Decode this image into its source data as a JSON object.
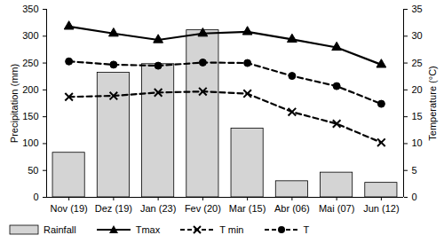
{
  "chart_data": {
    "type": "bar",
    "categories": [
      "Nov (19)",
      "Dez (19)",
      "Jan (23)",
      "Fev (20)",
      "Mar (15)",
      "Abr (06)",
      "Mai (07)",
      "Jun (12)"
    ],
    "ylabel": "Precipitation (mm)",
    "y2label": "Temperature (°C)",
    "ylim": [
      0,
      350
    ],
    "yticks": [
      0,
      50,
      100,
      150,
      200,
      250,
      300,
      350
    ],
    "y2lim": [
      0,
      35
    ],
    "y2ticks": [
      0,
      5,
      10,
      15,
      20,
      25,
      30,
      35
    ],
    "grid": false,
    "legend": "bottom",
    "series": [
      {
        "name": "Rainfall",
        "type": "bar",
        "color": "#d4d4d4",
        "values": [
          83,
          232,
          248,
          311,
          128,
          30,
          46,
          27
        ]
      },
      {
        "name": "Tmax",
        "type": "line",
        "axis": "y2",
        "color": "#000000",
        "marker": "triangle",
        "line_style": "solid",
        "values": [
          31.8,
          30.5,
          29.3,
          30.5,
          30.8,
          29.4,
          27.9,
          24.7
        ]
      },
      {
        "name": "T min",
        "type": "line",
        "axis": "y2",
        "color": "#000000",
        "marker": "times",
        "line_style": "dashed",
        "values": [
          18.7,
          18.9,
          19.5,
          19.7,
          19.3,
          15.9,
          13.7,
          10.2
        ]
      },
      {
        "name": "T",
        "type": "line",
        "axis": "y2",
        "color": "#000000",
        "marker": "circle",
        "line_style": "dashed",
        "values": [
          25.3,
          24.7,
          24.5,
          25.1,
          25.0,
          22.6,
          20.7,
          17.4
        ]
      }
    ]
  }
}
